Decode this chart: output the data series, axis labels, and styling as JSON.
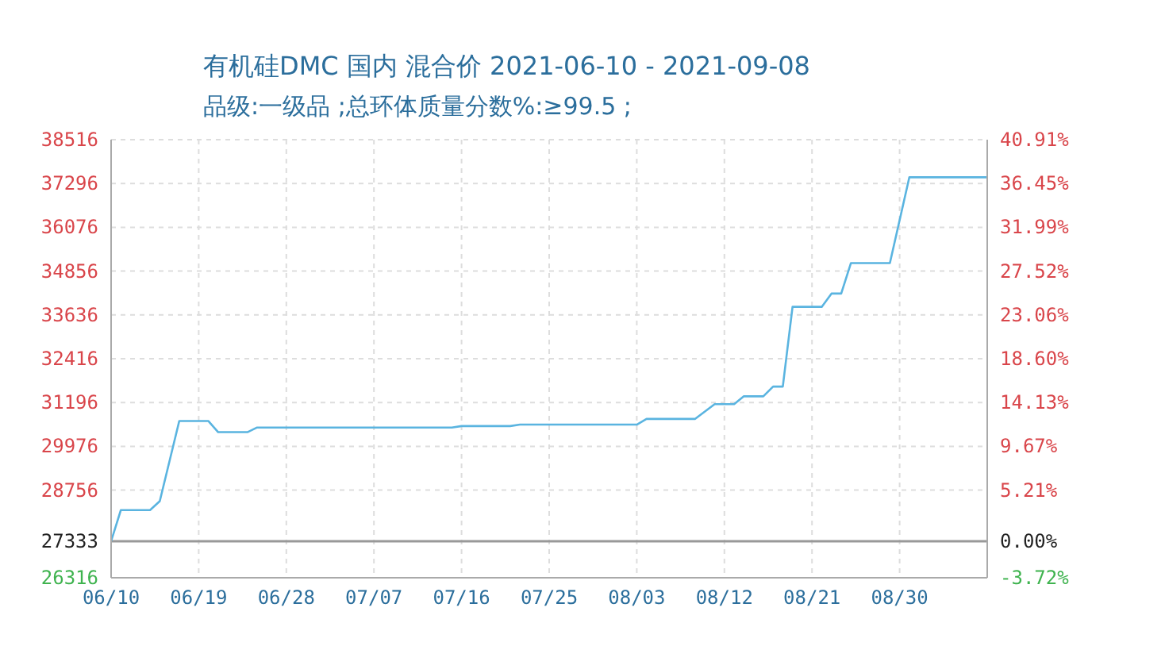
{
  "chart_data": {
    "type": "line",
    "title": "有机硅DMC 国内 混合价 2021-06-10 - 2021-09-08",
    "subtitle": "品级:一级品 ;总环体质量分数%:≥99.5 ;",
    "x": [
      "2021-06-10",
      "2021-06-11",
      "2021-06-14",
      "2021-06-15",
      "2021-06-17",
      "2021-06-20",
      "2021-06-21",
      "2021-06-24",
      "2021-06-25",
      "2021-07-15",
      "2021-07-16",
      "2021-07-21",
      "2021-07-22",
      "2021-08-03",
      "2021-08-04",
      "2021-08-09",
      "2021-08-11",
      "2021-08-13",
      "2021-08-14",
      "2021-08-16",
      "2021-08-17",
      "2021-08-18",
      "2021-08-19",
      "2021-08-22",
      "2021-08-23",
      "2021-08-24",
      "2021-08-25",
      "2021-08-29",
      "2021-08-31",
      "2021-09-08"
    ],
    "series": [
      {
        "color": "#5ab4e0",
        "values": [
          27333,
          28200,
          28200,
          28450,
          30680,
          30680,
          30370,
          30370,
          30500,
          30500,
          30540,
          30540,
          30580,
          30580,
          30740,
          30740,
          31150,
          31150,
          31370,
          31370,
          31640,
          31640,
          33860,
          33860,
          34230,
          34230,
          35080,
          35080,
          37470,
          37470
        ]
      }
    ],
    "xlim": [
      "2021-06-10",
      "2021-09-08"
    ],
    "xticks": [
      {
        "value": "2021-06-10",
        "label": "06/10"
      },
      {
        "value": "2021-06-19",
        "label": "06/19"
      },
      {
        "value": "2021-06-28",
        "label": "06/28"
      },
      {
        "value": "2021-07-07",
        "label": "07/07"
      },
      {
        "value": "2021-07-16",
        "label": "07/16"
      },
      {
        "value": "2021-07-25",
        "label": "07/25"
      },
      {
        "value": "2021-08-03",
        "label": "08/03"
      },
      {
        "value": "2021-08-12",
        "label": "08/12"
      },
      {
        "value": "2021-08-21",
        "label": "08/21"
      },
      {
        "value": "2021-08-30",
        "label": "08/30"
      }
    ],
    "ylim": [
      26316,
      38516
    ],
    "yticks": [
      26316,
      27333,
      28756,
      29976,
      31196,
      32416,
      33636,
      34856,
      36076,
      37296,
      38516
    ],
    "y2lim": [
      -3.72,
      40.91
    ],
    "y2ticks": [
      {
        "value": -3.72,
        "label": "-3.72%"
      },
      {
        "value": 0,
        "label": "0.00%"
      },
      {
        "value": 5.21,
        "label": "5.21%"
      },
      {
        "value": 9.67,
        "label": "9.67%"
      },
      {
        "value": 14.13,
        "label": "14.13%"
      },
      {
        "value": 18.6,
        "label": "18.60%"
      },
      {
        "value": 23.06,
        "label": "23.06%"
      },
      {
        "value": 27.52,
        "label": "27.52%"
      },
      {
        "value": 31.99,
        "label": "31.99%"
      },
      {
        "value": 36.45,
        "label": "36.45%"
      },
      {
        "value": 40.91,
        "label": "40.91%"
      }
    ],
    "ref_lines": [
      {
        "axis": "y",
        "value": 27333,
        "color": "#999999"
      }
    ],
    "grid": true,
    "legend": false,
    "marker": "none",
    "line_style": "solid"
  }
}
